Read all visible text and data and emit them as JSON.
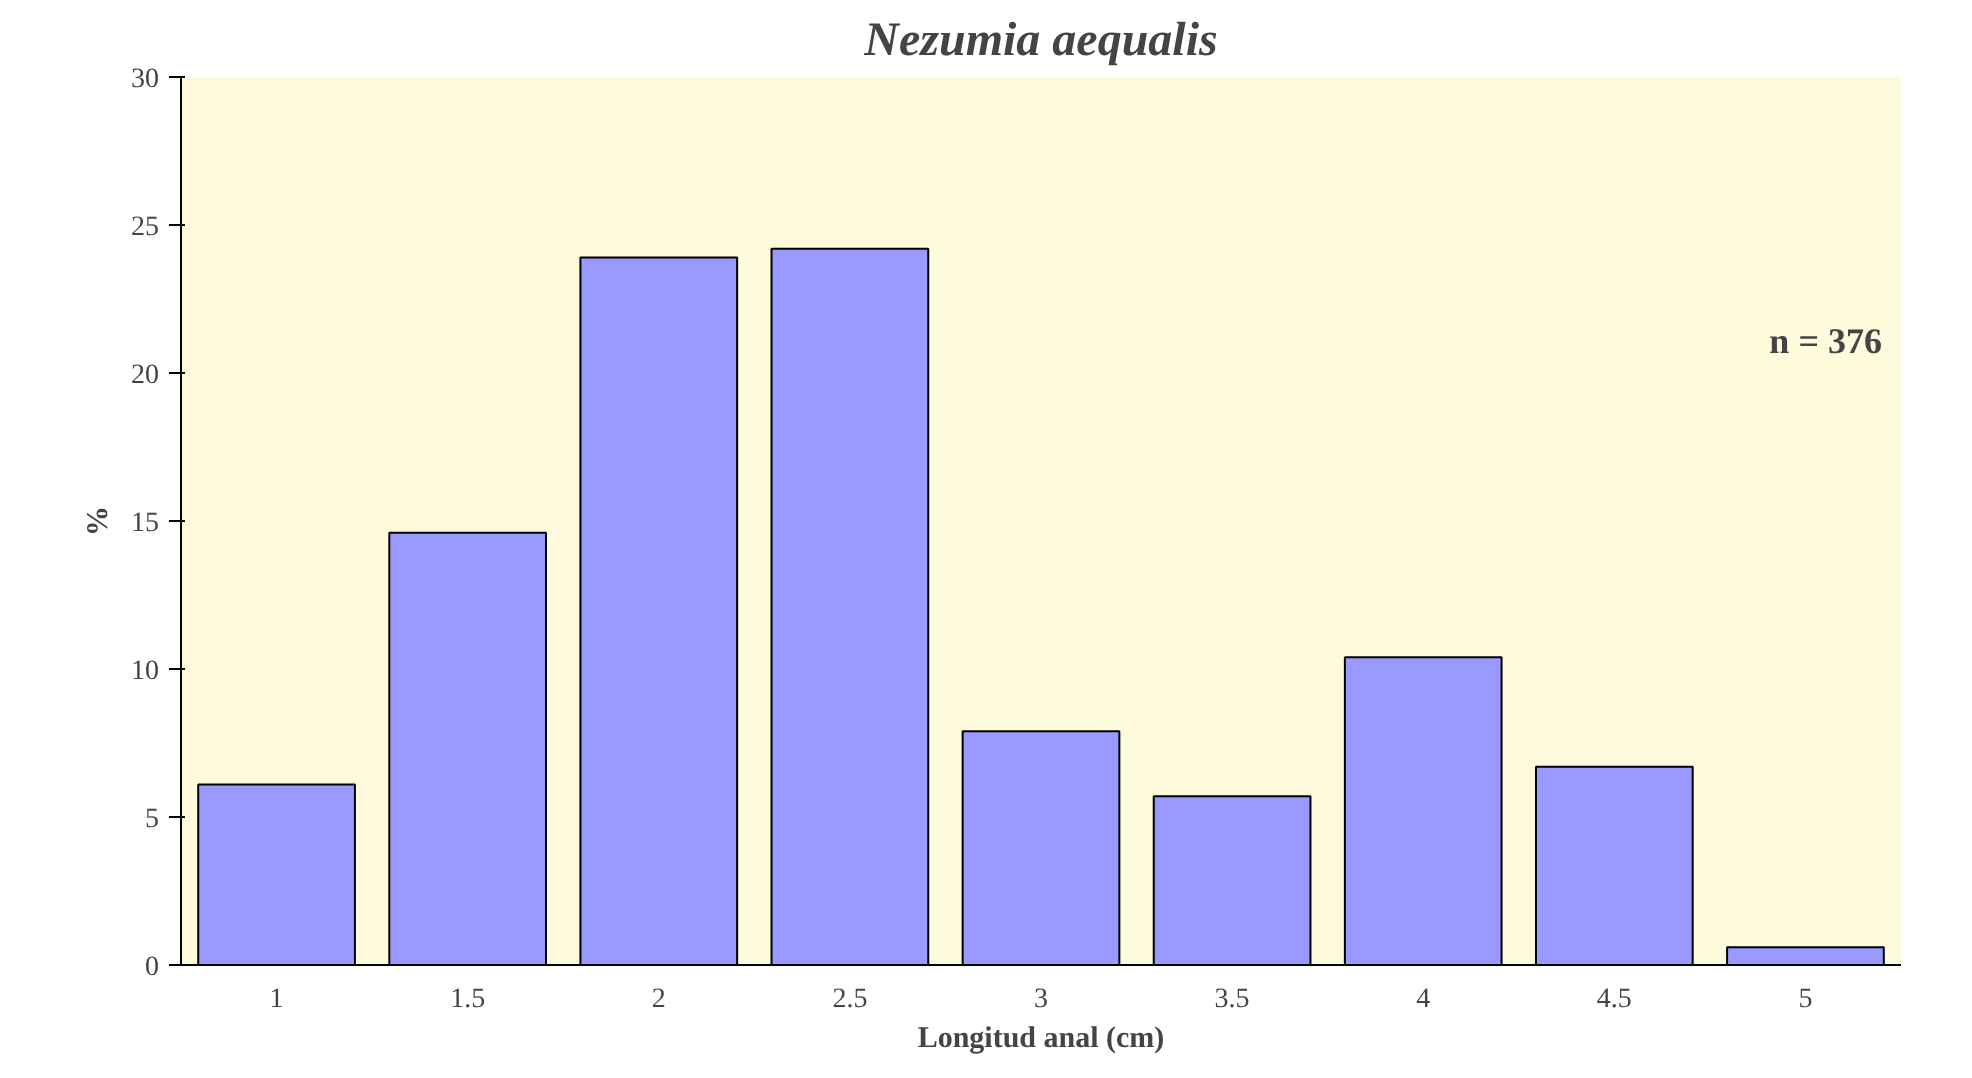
{
  "chart_data": {
    "type": "bar",
    "title": "Nezumia aequalis",
    "xlabel": "Longitud anal (cm)",
    "ylabel": "%",
    "categories": [
      "1",
      "1.5",
      "2",
      "2.5",
      "3",
      "3.5",
      "4",
      "4.5",
      "5"
    ],
    "values": [
      6.1,
      14.6,
      23.9,
      24.2,
      7.9,
      5.7,
      10.4,
      6.7,
      0.6
    ],
    "color": "#9999ff",
    "ylim": [
      0,
      30
    ],
    "yticks": [
      0,
      5,
      10,
      15,
      20,
      25,
      30
    ],
    "grid": false,
    "annotations": [
      "n = 376"
    ]
  }
}
